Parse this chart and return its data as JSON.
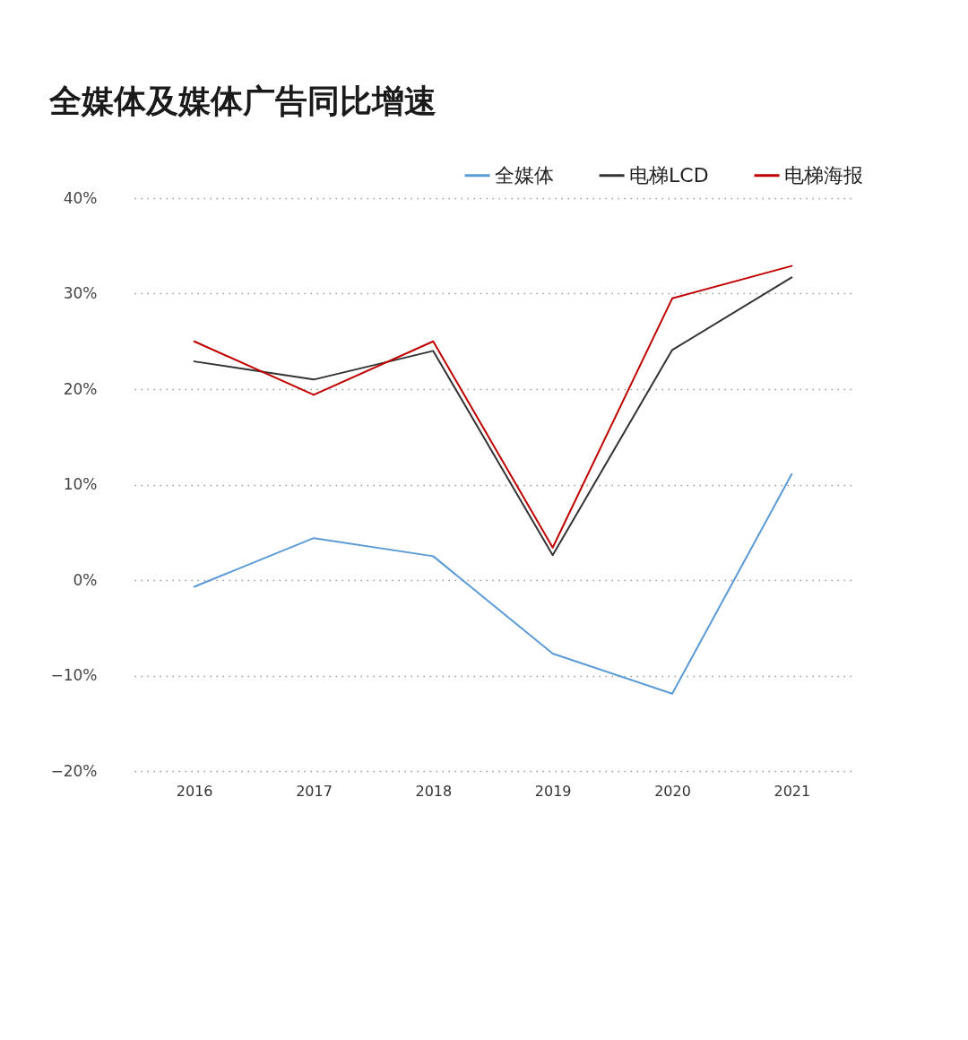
{
  "chart_data": {
    "type": "line",
    "title": "全媒体及媒体广告同比增速",
    "categories": [
      "2016",
      "2017",
      "2018",
      "2019",
      "2020",
      "2021"
    ],
    "series": [
      {
        "name": "全媒体",
        "color": "#5b9bd5",
        "values": [
          -0.7,
          4.4,
          2.5,
          -7.7,
          -11.9,
          11.1
        ]
      },
      {
        "name": "电梯LCD",
        "color": "#333333",
        "values": [
          22.9,
          21.0,
          24.0,
          2.6,
          24.1,
          31.7
        ]
      },
      {
        "name": "电梯海报",
        "color": "#c00000",
        "values": [
          25.0,
          19.4,
          25.0,
          3.4,
          29.5,
          32.9
        ]
      }
    ],
    "ylim": [
      -20,
      40
    ],
    "yticks": [
      {
        "value": 40,
        "label": "40%"
      },
      {
        "value": 30,
        "label": "30%"
      },
      {
        "value": 20,
        "label": "20%"
      },
      {
        "value": 10,
        "label": "10%"
      },
      {
        "value": 0,
        "label": "0%"
      },
      {
        "value": -10,
        "label": "−10%"
      },
      {
        "value": -20,
        "label": "−20%"
      }
    ],
    "grid": "y",
    "legend": "top right",
    "line_style": "solid"
  }
}
